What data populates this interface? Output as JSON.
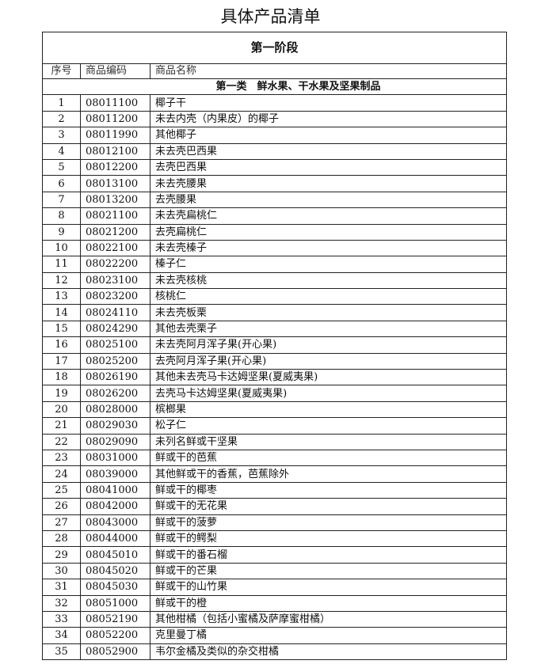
{
  "title": "具体产品清单",
  "stage": "第一阶段",
  "columns": [
    "序号",
    "商品编码",
    "商品名称"
  ],
  "category": "第一类　鲜水果、干水果及坚果制品",
  "rows": [
    [
      "1",
      "08011100",
      "椰子干"
    ],
    [
      "2",
      "08011200",
      "未去内壳（内果皮）的椰子"
    ],
    [
      "3",
      "08011990",
      "其他椰子"
    ],
    [
      "4",
      "08012100",
      "未去壳巴西果"
    ],
    [
      "5",
      "08012200",
      "去壳巴西果"
    ],
    [
      "6",
      "08013100",
      "未去壳腰果"
    ],
    [
      "7",
      "08013200",
      "去壳腰果"
    ],
    [
      "8",
      "08021100",
      "未去壳扁桃仁"
    ],
    [
      "9",
      "08021200",
      "去壳扁桃仁"
    ],
    [
      "10",
      "08022100",
      "未去壳榛子"
    ],
    [
      "11",
      "08022200",
      "榛子仁"
    ],
    [
      "12",
      "08023100",
      "未去壳核桃"
    ],
    [
      "13",
      "08023200",
      "核桃仁"
    ],
    [
      "14",
      "08024110",
      "未去壳板栗"
    ],
    [
      "15",
      "08024290",
      "其他去壳栗子"
    ],
    [
      "16",
      "08025100",
      "未去壳阿月浑子果(开心果)"
    ],
    [
      "17",
      "08025200",
      "去壳阿月浑子果(开心果)"
    ],
    [
      "18",
      "08026190",
      "其他未去壳马卡达姆坚果(夏威夷果)"
    ],
    [
      "19",
      "08026200",
      "去壳马卡达姆坚果(夏威夷果)"
    ],
    [
      "20",
      "08028000",
      "槟榔果"
    ],
    [
      "21",
      "08029030",
      "松子仁"
    ],
    [
      "22",
      "08029090",
      "未列名鲜或干坚果"
    ],
    [
      "23",
      "08031000",
      "鲜或干的芭蕉"
    ],
    [
      "24",
      "08039000",
      "其他鲜或干的香蕉，芭蕉除外"
    ],
    [
      "25",
      "08041000",
      "鲜或干的椰枣"
    ],
    [
      "26",
      "08042000",
      "鲜或干的无花果"
    ],
    [
      "27",
      "08043000",
      "鲜或干的菠萝"
    ],
    [
      "28",
      "08044000",
      "鲜或干的鳄梨"
    ],
    [
      "29",
      "08045010",
      "鲜或干的番石榴"
    ],
    [
      "30",
      "08045020",
      "鲜或干的芒果"
    ],
    [
      "31",
      "08045030",
      "鲜或干的山竹果"
    ],
    [
      "32",
      "08051000",
      "鲜或干的橙"
    ],
    [
      "33",
      "08052190",
      "其他柑橘（包括小蜜橘及萨摩蜜柑橘）"
    ],
    [
      "34",
      "08052200",
      "克里曼丁橘"
    ],
    [
      "35",
      "08052900",
      "韦尔金橘及类似的杂交柑橘"
    ]
  ]
}
